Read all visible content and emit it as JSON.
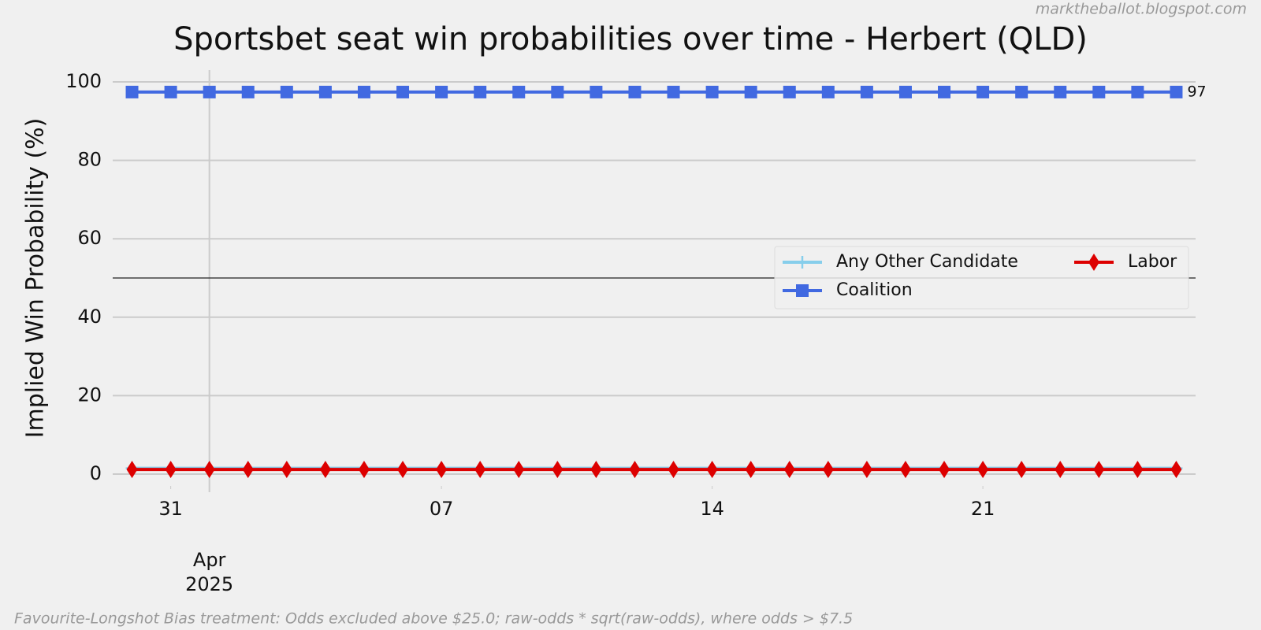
{
  "chart_data": {
    "type": "line",
    "title": "Sportsbet seat win probabilities over time - Herbert (QLD)",
    "watermark": "marktheballot.blogspot.com",
    "footnote": "Favourite-Longshot Bias treatment: Odds excluded above $25.0; raw-odds * sqrt(raw-odds), where odds > $7.5",
    "y_label": "Implied Win Probability (%)",
    "x": [
      "2025-03-30",
      "2025-03-31",
      "2025-04-01",
      "2025-04-02",
      "2025-04-03",
      "2025-04-04",
      "2025-04-05",
      "2025-04-06",
      "2025-04-07",
      "2025-04-08",
      "2025-04-09",
      "2025-04-10",
      "2025-04-11",
      "2025-04-12",
      "2025-04-13",
      "2025-04-14",
      "2025-04-15",
      "2025-04-16",
      "2025-04-17",
      "2025-04-18",
      "2025-04-19",
      "2025-04-20",
      "2025-04-21",
      "2025-04-22",
      "2025-04-23",
      "2025-04-24",
      "2025-04-25",
      "2025-04-26"
    ],
    "series": [
      {
        "name": "Any Other Candidate",
        "color": "#87ceeb",
        "marker": "plus",
        "values": [
          1.5,
          1.5,
          1.5,
          1.5,
          1.5,
          1.5,
          1.5,
          1.5,
          1.5,
          1.5,
          1.5,
          1.5,
          1.5,
          1.5,
          1.5,
          1.5,
          1.5,
          1.5,
          1.5,
          1.5,
          1.5,
          1.5,
          1.5,
          1.5,
          1.5,
          1.5,
          1.5,
          1.5
        ]
      },
      {
        "name": "Coalition",
        "color": "#4169e1",
        "marker": "square",
        "values": [
          97.4,
          97.4,
          97.4,
          97.4,
          97.4,
          97.4,
          97.4,
          97.4,
          97.4,
          97.4,
          97.4,
          97.4,
          97.4,
          97.4,
          97.4,
          97.4,
          97.4,
          97.4,
          97.4,
          97.4,
          97.4,
          97.4,
          97.4,
          97.4,
          97.4,
          97.4,
          97.4,
          97.4
        ],
        "value_labels": [
          null,
          null,
          null,
          null,
          null,
          null,
          null,
          null,
          null,
          null,
          null,
          null,
          null,
          null,
          null,
          null,
          null,
          null,
          null,
          null,
          null,
          null,
          null,
          null,
          null,
          null,
          null,
          "97"
        ]
      },
      {
        "name": "Labor",
        "color": "#dd0000",
        "marker": "diamond",
        "values": [
          1.2,
          1.2,
          1.2,
          1.2,
          1.2,
          1.2,
          1.2,
          1.2,
          1.2,
          1.2,
          1.2,
          1.2,
          1.2,
          1.2,
          1.2,
          1.2,
          1.2,
          1.2,
          1.2,
          1.2,
          1.2,
          1.2,
          1.2,
          1.2,
          1.2,
          1.2,
          1.2,
          1.2
        ]
      }
    ],
    "xlim": [
      "2025-03-29T12:00:00Z",
      "2025-04-26T12:00:00Z"
    ],
    "xticks": [
      {
        "value": "2025-03-31",
        "label": "31"
      },
      {
        "value": "2025-04-07",
        "label": "07"
      },
      {
        "value": "2025-04-14",
        "label": "14"
      },
      {
        "value": "2025-04-21",
        "label": "21"
      }
    ],
    "xticks_major": [
      {
        "value": "2025-04-01",
        "label": "Apr\n2025"
      }
    ],
    "ylim": [
      -3,
      103
    ],
    "yticks": [
      0,
      20,
      40,
      60,
      80,
      100
    ],
    "hline": 50,
    "grid": true,
    "legend": "center right"
  }
}
